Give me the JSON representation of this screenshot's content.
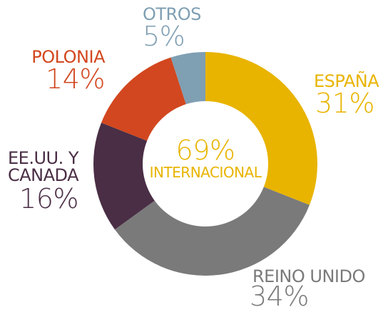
{
  "chart_data": {
    "type": "donut",
    "categories": [
      "ESPAÑA",
      "REINO UNIDO",
      "EE.UU. Y CANADA",
      "POLONIA",
      "OTROS"
    ],
    "values": [
      31,
      34,
      16,
      14,
      5
    ],
    "value_labels": [
      "31%",
      "34%",
      "16%",
      "14%",
      "5%"
    ],
    "colors": [
      "#e8b400",
      "#7a7a7a",
      "#4a2e45",
      "#d2471f",
      "#7f9fb3"
    ],
    "center_label": "69%",
    "center_sublabel": "INTERNACIONAL"
  }
}
